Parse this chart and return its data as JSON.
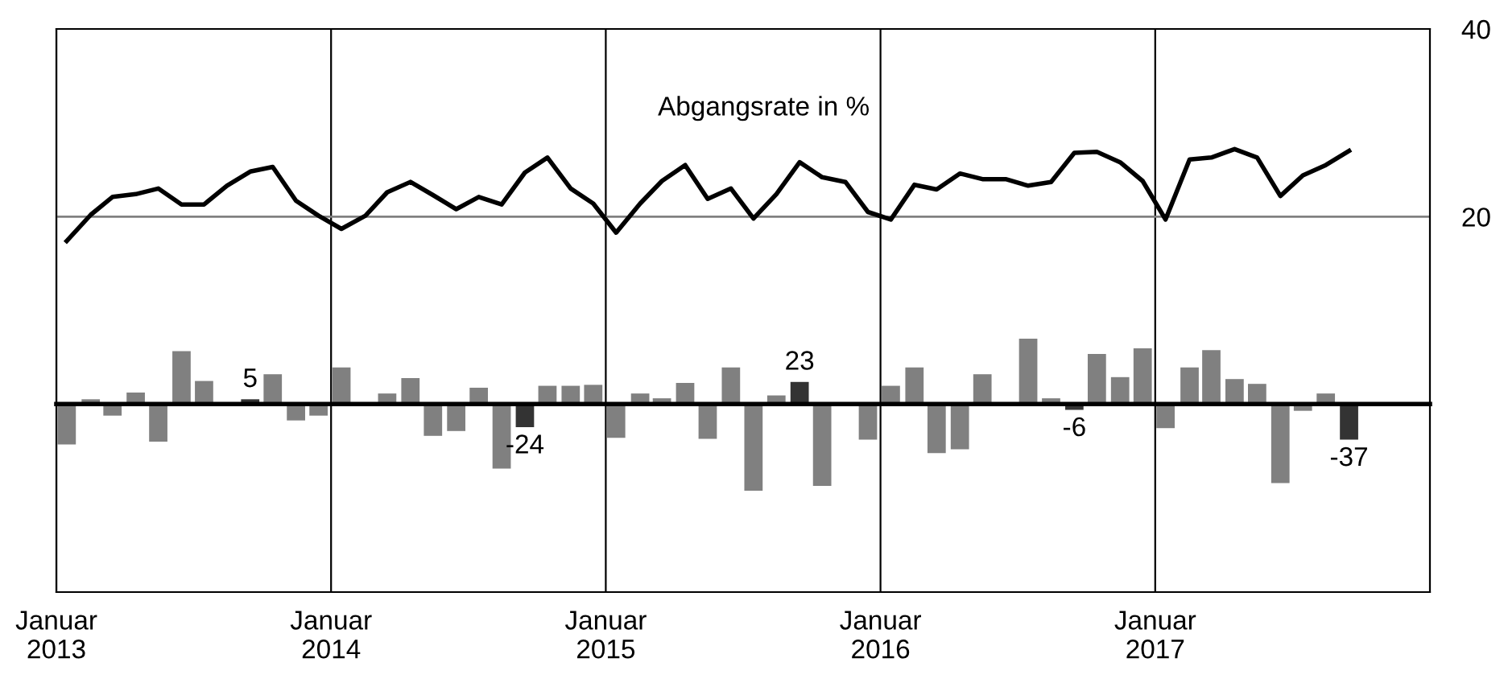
{
  "chart_data": [
    {
      "type": "line",
      "x": [
        "2013-01-15",
        "2013-02-15",
        "2013-03-15",
        "2013-04-15",
        "2013-05-15",
        "2013-06-15",
        "2013-07-15",
        "2013-08-15",
        "2013-09-15",
        "2013-10-15",
        "2013-11-15",
        "2013-12-15",
        "2014-01-15",
        "2014-02-15",
        "2014-03-15",
        "2014-04-15",
        "2014-05-15",
        "2014-06-15",
        "2014-07-15",
        "2014-08-15",
        "2014-09-15",
        "2014-10-15",
        "2014-11-15",
        "2014-12-15",
        "2015-01-15",
        "2015-02-15",
        "2015-03-15",
        "2015-04-15",
        "2015-05-15",
        "2015-06-15",
        "2015-07-15",
        "2015-08-15",
        "2015-09-15",
        "2015-10-15",
        "2015-11-15",
        "2015-12-15",
        "2016-01-15",
        "2016-02-15",
        "2016-03-15",
        "2016-04-15",
        "2016-05-15",
        "2016-06-15",
        "2016-07-15",
        "2016-08-15",
        "2016-09-15",
        "2016-10-15",
        "2016-11-15",
        "2016-12-15",
        "2017-01-15",
        "2017-02-15",
        "2017-03-15",
        "2017-04-15",
        "2017-05-15",
        "2017-06-15",
        "2017-07-15",
        "2017-08-15",
        "2017-09-15"
      ],
      "series": [
        {
          "name": "Abgangsrate in %",
          "color": "#000000",
          "values": [
            17.4,
            20.2,
            22.1,
            22.4,
            23.0,
            21.3,
            21.3,
            23.3,
            24.8,
            25.3,
            21.7,
            20.1,
            18.7,
            20.1,
            22.6,
            23.7,
            22.3,
            20.8,
            22.1,
            21.3,
            24.7,
            26.3,
            23.0,
            21.4,
            18.3,
            21.4,
            23.8,
            25.5,
            21.9,
            23.0,
            19.8,
            22.4,
            25.8,
            24.2,
            23.7,
            20.5,
            19.7,
            23.4,
            22.9,
            24.6,
            24.0,
            24.0,
            23.3,
            23.7,
            26.8,
            26.9,
            25.8,
            23.8,
            19.7,
            26.1,
            26.3,
            27.2,
            26.3,
            22.2,
            24.4,
            25.5,
            27.0
          ]
        }
      ],
      "xlim": [
        "2013-01",
        "2018-01"
      ],
      "xticks": [
        {
          "value": "2013-01",
          "label": "Januar\n2013"
        },
        {
          "value": "2014-01",
          "label": "Januar\n2014"
        },
        {
          "value": "2015-01",
          "label": "Januar\n2015"
        },
        {
          "value": "2016-01",
          "label": "Januar\n2016"
        },
        {
          "value": "2017-01",
          "label": "Januar\n2017"
        }
      ],
      "ylim": [
        -20,
        40
      ],
      "yticks": [
        20,
        40
      ],
      "ref_lines": [
        {
          "axis": "y",
          "value": 20,
          "color": "#808080"
        }
      ],
      "grid": "x"
    },
    {
      "type": "bar",
      "x": [
        "2013-01-15",
        "2013-02-15",
        "2013-03-15",
        "2013-04-15",
        "2013-05-15",
        "2013-06-15",
        "2013-07-15",
        "2013-08-15",
        "2013-09-15",
        "2013-10-15",
        "2013-11-15",
        "2013-12-15",
        "2014-01-15",
        "2014-02-15",
        "2014-03-15",
        "2014-04-15",
        "2014-05-15",
        "2014-06-15",
        "2014-07-15",
        "2014-08-15",
        "2014-09-15",
        "2014-10-15",
        "2014-11-15",
        "2014-12-15",
        "2015-01-15",
        "2015-02-15",
        "2015-03-15",
        "2015-04-15",
        "2015-05-15",
        "2015-06-15",
        "2015-07-15",
        "2015-08-15",
        "2015-09-15",
        "2015-10-15",
        "2015-11-15",
        "2015-12-15",
        "2016-01-15",
        "2016-02-15",
        "2016-03-15",
        "2016-04-15",
        "2016-05-15",
        "2016-06-15",
        "2016-07-15",
        "2016-08-15",
        "2016-09-15",
        "2016-10-15",
        "2016-11-15",
        "2016-12-15",
        "2017-01-15",
        "2017-02-15",
        "2017-03-15",
        "2017-04-15",
        "2017-05-15",
        "2017-06-15",
        "2017-07-15",
        "2017-08-15",
        "2017-09-15"
      ],
      "colors": [
        "#808080",
        "#808080",
        "#808080",
        "#808080",
        "#808080",
        "#808080",
        "#808080",
        "#808080",
        "#333333",
        "#808080",
        "#808080",
        "#808080",
        "#808080",
        "#808080",
        "#808080",
        "#808080",
        "#808080",
        "#808080",
        "#808080",
        "#808080",
        "#333333",
        "#808080",
        "#808080",
        "#808080",
        "#808080",
        "#808080",
        "#808080",
        "#808080",
        "#808080",
        "#808080",
        "#808080",
        "#808080",
        "#333333",
        "#808080",
        "#808080",
        "#808080",
        "#808080",
        "#808080",
        "#808080",
        "#808080",
        "#808080",
        "#808080",
        "#808080",
        "#808080",
        "#333333",
        "#808080",
        "#808080",
        "#808080",
        "#808080",
        "#808080",
        "#808080",
        "#808080",
        "#808080",
        "#808080",
        "#808080",
        "#808080",
        "#333333"
      ],
      "values": [
        -42,
        5,
        -12,
        12,
        -39,
        55,
        24,
        0,
        5,
        31,
        -17,
        -12,
        38,
        0,
        11,
        27,
        -33,
        -28,
        17,
        -67,
        -24,
        19,
        19,
        20,
        -35,
        11,
        6,
        22,
        -36,
        38,
        -90,
        9,
        23,
        -85,
        0,
        -37,
        19,
        38,
        -51,
        -47,
        31,
        0,
        68,
        6,
        -6,
        52,
        28,
        58,
        -25,
        38,
        56,
        26,
        21,
        -82,
        -7,
        11,
        -37
      ],
      "value_labels": [
        null,
        null,
        null,
        null,
        null,
        null,
        null,
        null,
        "5",
        null,
        null,
        null,
        null,
        null,
        null,
        null,
        null,
        null,
        null,
        null,
        "-24",
        null,
        null,
        null,
        null,
        null,
        null,
        null,
        null,
        null,
        null,
        null,
        "23",
        null,
        null,
        null,
        null,
        null,
        null,
        null,
        null,
        null,
        null,
        null,
        "-6",
        null,
        null,
        null,
        null,
        null,
        null,
        null,
        null,
        null,
        null,
        null,
        "-37"
      ],
      "xlim": [
        "2013-01",
        "2018-01"
      ]
    }
  ]
}
